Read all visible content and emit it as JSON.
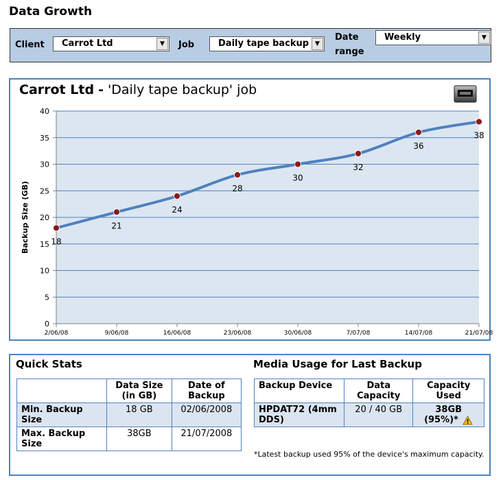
{
  "page": {
    "title": "Data Growth"
  },
  "filters": {
    "client_label": "Client",
    "client_value": "Carrot Ltd",
    "job_label": "Job",
    "job_value": "Daily tape backup",
    "date_range_label_1": "Date",
    "date_range_label_2": "range",
    "date_range_value": "Weekly"
  },
  "chart_header": {
    "client": "Carrot Ltd",
    "dash": "-",
    "job": "'Daily tape backup' job"
  },
  "chart_data": {
    "type": "line",
    "title": "Carrot Ltd - 'Daily tape backup' job",
    "xlabel": "",
    "ylabel": "Backup Size (GB)",
    "categories": [
      "2/06/08",
      "9/06/08",
      "16/06/08",
      "23/06/08",
      "30/06/08",
      "7/07/08",
      "14/07/08",
      "21/07/08"
    ],
    "series": [
      {
        "values": [
          18,
          21,
          24,
          28,
          30,
          32,
          36,
          38
        ]
      }
    ],
    "ylim": [
      0,
      40
    ],
    "yticks": [
      0,
      5,
      10,
      15,
      20,
      25,
      30,
      35,
      40
    ],
    "grid": true,
    "data_labels": true,
    "line_color": "#4f81bd",
    "marker_color": "#8b1a1a",
    "plot_background": "#dce6f1"
  },
  "quick_stats": {
    "heading": "Quick Stats",
    "col_size": [
      "Data Size",
      "(in GB)"
    ],
    "col_date": [
      "Date of",
      "Backup"
    ],
    "rows": [
      {
        "label": "Min. Backup Size",
        "size": "18 GB",
        "date": "02/06/2008"
      },
      {
        "label": "Max. Backup Size",
        "size": "38GB",
        "date": "21/07/2008"
      }
    ]
  },
  "media_usage": {
    "heading": "Media Usage for Last Backup",
    "col_device": "Backup Device",
    "col_capacity": [
      "Data",
      "Capacity"
    ],
    "col_used": [
      "Capacity",
      "Used"
    ],
    "device": "HPDAT72 (4mm DDS)",
    "capacity": "20 / 40 GB",
    "used_1": "38GB",
    "used_2": "(95%)*",
    "footnote": "*Latest backup used 95% of the device's maximum capacity.",
    "warning_icon": "warning-icon"
  },
  "colors": {
    "accent": "#4f81bd",
    "filter_bar": "#b8cce4",
    "highlight_row": "#dbe5f1",
    "warning": "#f2c200"
  }
}
